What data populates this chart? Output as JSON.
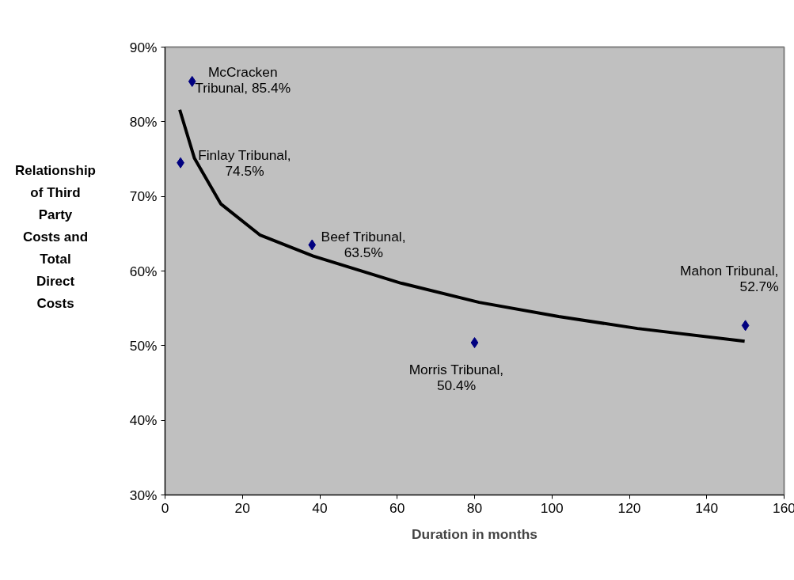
{
  "chart_data": {
    "type": "scatter",
    "xlabel": "Duration in months",
    "ylabel": "Relationship of Third Party Costs and Total Direct Costs",
    "xlim": [
      0,
      160
    ],
    "xticks": [
      0,
      20,
      40,
      60,
      80,
      100,
      120,
      140,
      160
    ],
    "ylim": [
      30,
      90
    ],
    "yticks": [
      {
        "value": 30,
        "label": "30%"
      },
      {
        "value": 40,
        "label": "40%"
      },
      {
        "value": 50,
        "label": "50%"
      },
      {
        "value": 60,
        "label": "60%"
      },
      {
        "value": 70,
        "label": "70%"
      },
      {
        "value": 80,
        "label": "80%"
      },
      {
        "value": 90,
        "label": "90%"
      }
    ],
    "grid": false,
    "series": [
      {
        "marker": "diamond",
        "color": "#000080",
        "x": [
          7,
          4,
          38,
          80,
          150
        ],
        "values": [
          85.4,
          74.5,
          63.5,
          50.4,
          52.7
        ],
        "value_labels": [
          "McCracken\nTribunal, 85.4%",
          "Finlay Tribunal,\n74.5%",
          "Beef Tribunal,\n63.5%",
          "Morris Tribunal,\n50.4%",
          "Mahon Tribunal,\n52.7%"
        ]
      },
      {
        "type": "line",
        "color": "#000000",
        "line_style": "solid",
        "x": [
          3.8,
          7.6,
          14.4,
          24.6,
          38.3,
          60.8,
          81.2,
          101.7,
          122.1,
          149.8
        ],
        "values": [
          81.6,
          75.1,
          69.0,
          64.8,
          62.0,
          58.4,
          55.8,
          53.9,
          52.3,
          50.6
        ]
      }
    ]
  }
}
